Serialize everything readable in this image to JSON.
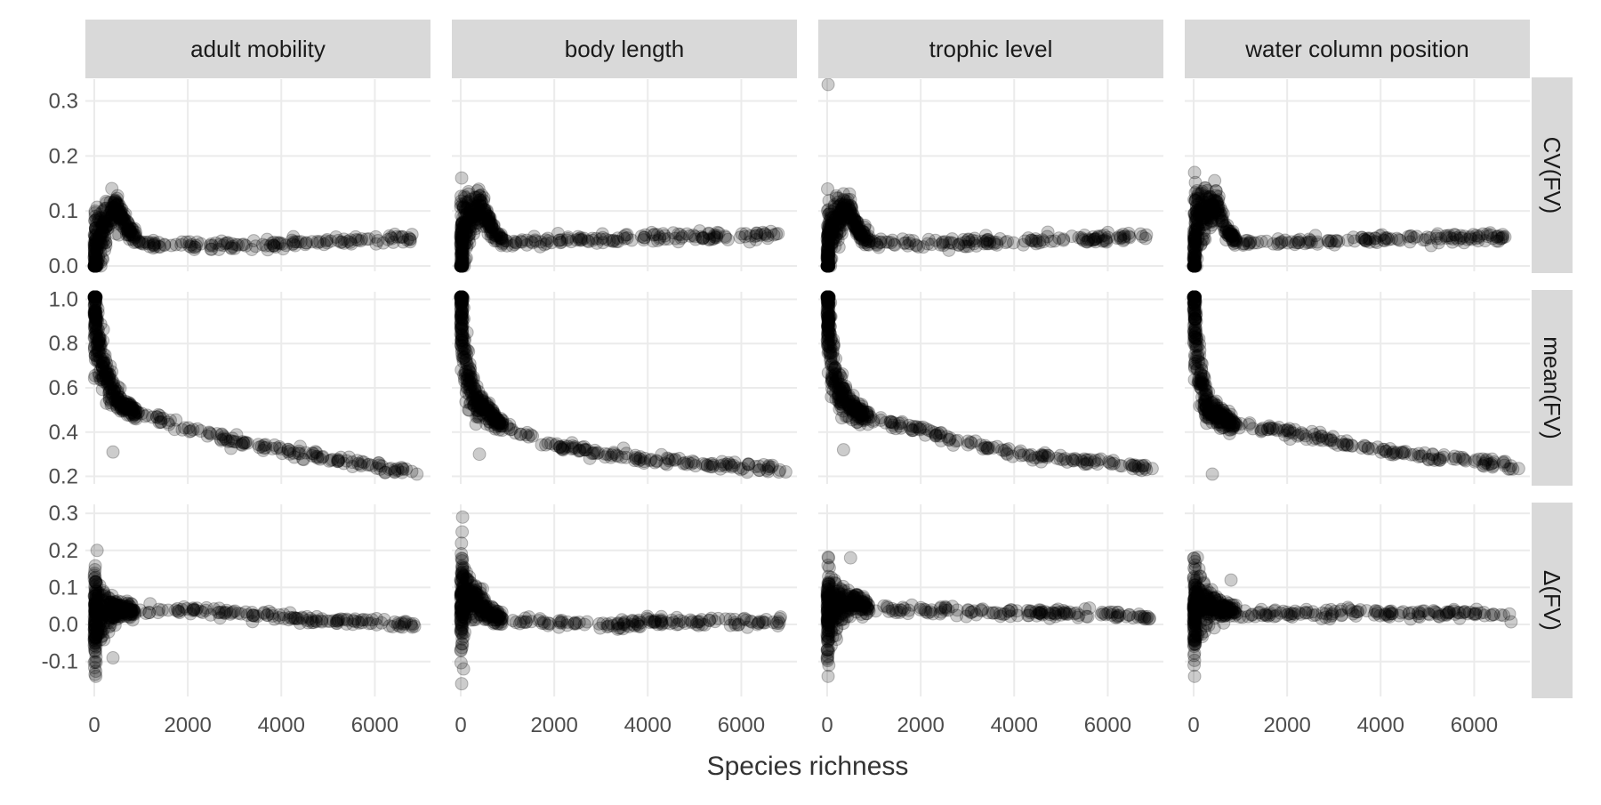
{
  "chart_data": {
    "type": "scatter",
    "title": "",
    "xlabel": "Species richness",
    "ylabel": "",
    "grid": true,
    "legend": "none",
    "colors": {
      "point": "#000000",
      "strip_background": "#d9d9d9",
      "strip_text": "#1a1a1a",
      "gridline": "#ebebeb",
      "tick_label": "#4d4d4d",
      "axis_title": "#333333"
    },
    "x": {
      "range": [
        0,
        7000
      ],
      "ticks": [
        0,
        2000,
        4000,
        6000
      ],
      "tick_labels": [
        "0",
        "2000",
        "4000",
        "6000"
      ]
    },
    "columns": [
      "adult mobility",
      "body length",
      "trophic level",
      "water column position"
    ],
    "rows": [
      {
        "label": "CV(FV)",
        "range": [
          0,
          0.33
        ],
        "ticks": [
          0.0,
          0.1,
          0.2,
          0.3
        ],
        "tick_labels": [
          "0.0",
          "0.1",
          "0.2",
          "0.3"
        ]
      },
      {
        "label": "mean(FV)",
        "range": [
          0.19,
          1.01
        ],
        "ticks": [
          0.2,
          0.4,
          0.6,
          0.8,
          1.0
        ],
        "tick_labels": [
          "0.2",
          "0.4",
          "0.6",
          "0.8",
          "1.0"
        ]
      },
      {
        "label": "Δ(FV)",
        "range": [
          -0.18,
          0.31
        ],
        "ticks": [
          -0.1,
          0.0,
          0.1,
          0.2,
          0.3
        ],
        "tick_labels": [
          "-0.1",
          "0.0",
          "0.1",
          "0.2",
          "0.3"
        ]
      }
    ],
    "panels": [
      {
        "column": "adult mobility",
        "row": "CV(FV)",
        "trend": [
          [
            0,
            0.0
          ],
          [
            60,
            0.05
          ],
          [
            200,
            0.07
          ],
          [
            450,
            0.11
          ],
          [
            700,
            0.07
          ],
          [
            1000,
            0.04
          ],
          [
            2000,
            0.037
          ],
          [
            3000,
            0.038
          ],
          [
            4000,
            0.041
          ],
          [
            5000,
            0.045
          ],
          [
            6000,
            0.047
          ],
          [
            6800,
            0.049
          ]
        ],
        "outliers": [
          [
            20,
            0.09
          ],
          [
            30,
            0.0
          ],
          [
            450,
            0.12
          ]
        ]
      },
      {
        "column": "adult mobility",
        "row": "mean(FV)",
        "trend": [
          [
            0,
            1.0
          ],
          [
            100,
            0.78
          ],
          [
            300,
            0.62
          ],
          [
            600,
            0.52
          ],
          [
            1000,
            0.48
          ],
          [
            2000,
            0.42
          ],
          [
            3000,
            0.36
          ],
          [
            4000,
            0.32
          ],
          [
            5000,
            0.28
          ],
          [
            6000,
            0.25
          ],
          [
            6800,
            0.22
          ]
        ],
        "outliers": [
          [
            20,
            0.99
          ],
          [
            400,
            0.31
          ],
          [
            6900,
            0.21
          ]
        ]
      },
      {
        "column": "adult mobility",
        "row": "Δ(FV)",
        "trend": [
          [
            0,
            0.02
          ],
          [
            200,
            0.03
          ],
          [
            500,
            0.04
          ],
          [
            1000,
            0.035
          ],
          [
            2000,
            0.04
          ],
          [
            3000,
            0.03
          ],
          [
            4000,
            0.02
          ],
          [
            5000,
            0.01
          ],
          [
            6000,
            0.005
          ],
          [
            6900,
            0.0
          ]
        ],
        "outliers": [
          [
            60,
            0.2
          ],
          [
            20,
            -0.1
          ],
          [
            400,
            -0.09
          ]
        ]
      },
      {
        "column": "body length",
        "row": "CV(FV)",
        "trend": [
          [
            0,
            0.0
          ],
          [
            60,
            0.07
          ],
          [
            200,
            0.09
          ],
          [
            450,
            0.11
          ],
          [
            700,
            0.06
          ],
          [
            1000,
            0.04
          ],
          [
            2000,
            0.046
          ],
          [
            3000,
            0.05
          ],
          [
            4000,
            0.052
          ],
          [
            5000,
            0.054
          ],
          [
            6000,
            0.056
          ],
          [
            6900,
            0.058
          ]
        ],
        "outliers": [
          [
            20,
            0.16
          ],
          [
            30,
            0.0
          ],
          [
            400,
            0.12
          ]
        ]
      },
      {
        "column": "body length",
        "row": "mean(FV)",
        "trend": [
          [
            0,
            1.0
          ],
          [
            100,
            0.7
          ],
          [
            300,
            0.55
          ],
          [
            600,
            0.48
          ],
          [
            1000,
            0.42
          ],
          [
            2000,
            0.34
          ],
          [
            3000,
            0.3
          ],
          [
            4000,
            0.28
          ],
          [
            5000,
            0.26
          ],
          [
            6000,
            0.245
          ],
          [
            6900,
            0.23
          ]
        ],
        "outliers": [
          [
            20,
            0.99
          ],
          [
            400,
            0.3
          ],
          [
            6950,
            0.22
          ]
        ]
      },
      {
        "column": "body length",
        "row": "Δ(FV)",
        "trend": [
          [
            0,
            0.05
          ],
          [
            200,
            0.08
          ],
          [
            600,
            0.03
          ],
          [
            1000,
            0.01
          ],
          [
            2000,
            0.005
          ],
          [
            3000,
            0.0
          ],
          [
            4000,
            0.005
          ],
          [
            5000,
            0.005
          ],
          [
            6000,
            0.01
          ],
          [
            6900,
            0.005
          ]
        ],
        "outliers": [
          [
            40,
            0.29
          ],
          [
            30,
            0.25
          ],
          [
            20,
            -0.16
          ],
          [
            60,
            -0.12
          ]
        ]
      },
      {
        "column": "trophic level",
        "row": "CV(FV)",
        "trend": [
          [
            0,
            0.0
          ],
          [
            60,
            0.05
          ],
          [
            200,
            0.08
          ],
          [
            450,
            0.11
          ],
          [
            700,
            0.06
          ],
          [
            1000,
            0.04
          ],
          [
            2000,
            0.04
          ],
          [
            3000,
            0.042
          ],
          [
            4000,
            0.045
          ],
          [
            5000,
            0.048
          ],
          [
            6000,
            0.05
          ],
          [
            6900,
            0.054
          ]
        ],
        "outliers": [
          [
            20,
            0.33
          ],
          [
            10,
            0.14
          ],
          [
            30,
            0.0
          ]
        ]
      },
      {
        "column": "trophic level",
        "row": "mean(FV)",
        "trend": [
          [
            0,
            1.0
          ],
          [
            100,
            0.72
          ],
          [
            300,
            0.56
          ],
          [
            600,
            0.5
          ],
          [
            1000,
            0.46
          ],
          [
            2000,
            0.41
          ],
          [
            3000,
            0.35
          ],
          [
            4000,
            0.3
          ],
          [
            5000,
            0.28
          ],
          [
            6000,
            0.26
          ],
          [
            6900,
            0.24
          ]
        ],
        "outliers": [
          [
            20,
            0.99
          ],
          [
            350,
            0.32
          ],
          [
            6950,
            0.235
          ]
        ]
      },
      {
        "column": "trophic level",
        "row": "Δ(FV)",
        "trend": [
          [
            0,
            0.02
          ],
          [
            200,
            0.05
          ],
          [
            600,
            0.06
          ],
          [
            1000,
            0.04
          ],
          [
            2000,
            0.04
          ],
          [
            3000,
            0.035
          ],
          [
            4000,
            0.03
          ],
          [
            5000,
            0.03
          ],
          [
            6000,
            0.025
          ],
          [
            6900,
            0.02
          ]
        ],
        "outliers": [
          [
            20,
            -0.14
          ],
          [
            30,
            0.18
          ],
          [
            500,
            0.18
          ]
        ]
      },
      {
        "column": "water column position",
        "row": "CV(FV)",
        "trend": [
          [
            0,
            0.0
          ],
          [
            60,
            0.08
          ],
          [
            200,
            0.09
          ],
          [
            450,
            0.12
          ],
          [
            700,
            0.06
          ],
          [
            1000,
            0.04
          ],
          [
            2000,
            0.043
          ],
          [
            3000,
            0.046
          ],
          [
            4000,
            0.048
          ],
          [
            5000,
            0.05
          ],
          [
            6000,
            0.052
          ],
          [
            6900,
            0.055
          ]
        ],
        "outliers": [
          [
            20,
            0.17
          ],
          [
            30,
            0.0
          ],
          [
            450,
            0.155
          ]
        ]
      },
      {
        "column": "water column position",
        "row": "mean(FV)",
        "trend": [
          [
            0,
            1.0
          ],
          [
            100,
            0.7
          ],
          [
            300,
            0.5
          ],
          [
            600,
            0.46
          ],
          [
            1000,
            0.43
          ],
          [
            2000,
            0.4
          ],
          [
            3000,
            0.36
          ],
          [
            4000,
            0.32
          ],
          [
            5000,
            0.29
          ],
          [
            6000,
            0.27
          ],
          [
            6900,
            0.24
          ]
        ],
        "outliers": [
          [
            20,
            0.99
          ],
          [
            400,
            0.21
          ],
          [
            6950,
            0.235
          ]
        ]
      },
      {
        "column": "water column position",
        "row": "Δ(FV)",
        "trend": [
          [
            0,
            0.03
          ],
          [
            200,
            0.06
          ],
          [
            600,
            0.04
          ],
          [
            1000,
            0.03
          ],
          [
            2000,
            0.03
          ],
          [
            3000,
            0.03
          ],
          [
            4000,
            0.03
          ],
          [
            5000,
            0.03
          ],
          [
            6000,
            0.03
          ],
          [
            6800,
            0.02
          ]
        ],
        "outliers": [
          [
            20,
            -0.14
          ],
          [
            30,
            0.17
          ],
          [
            800,
            0.12
          ]
        ]
      }
    ]
  }
}
